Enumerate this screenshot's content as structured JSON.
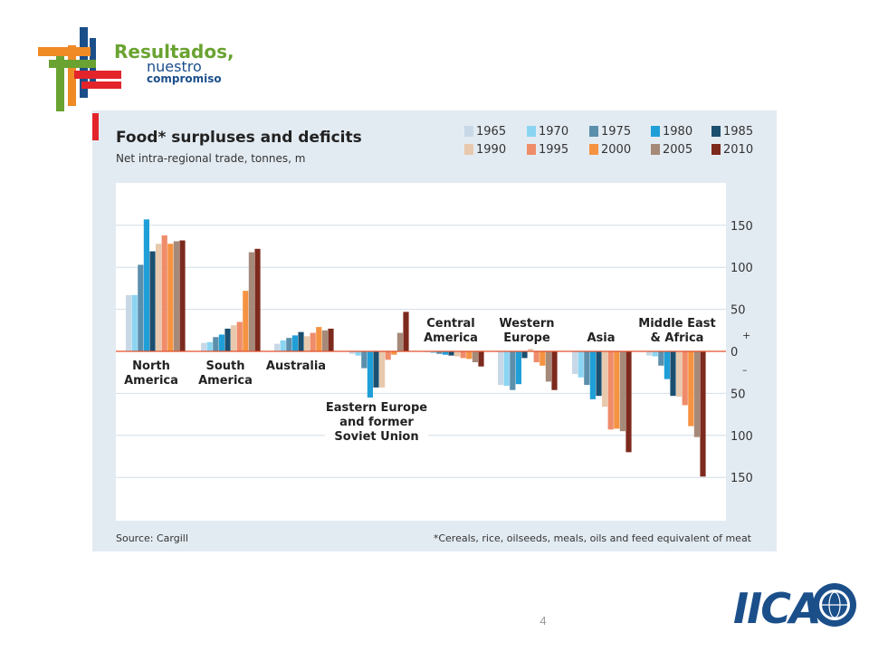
{
  "slide": {
    "page_number": "4",
    "logo_text": {
      "line1": "Resultados,",
      "line2": "nuestro",
      "line3": "compromiso"
    },
    "iica_logo_text": "IICA"
  },
  "colors": {
    "red_accent": "#e3242b",
    "panel": "#e3ebf2",
    "grid": "#ffffff",
    "zero_line": "#e0502c",
    "text": "#333333",
    "series": [
      "#c8d8e6",
      "#8bd4f2",
      "#5b8fab",
      "#1f9fd8",
      "#1b4f70",
      "#e8c9ad",
      "#ef8c6a",
      "#f59342",
      "#a68a79",
      "#7c2a1d"
    ]
  },
  "chart_data": {
    "type": "bar",
    "title": "Food* surpluses and deficits",
    "subtitle": "Net intra-regional trade, tonnes, m",
    "source": "Source: Cargill",
    "footnote": "*Cereals, rice, oilseeds, meals, oils and feed equivalent of meat",
    "y_ticks": [
      {
        "value": 150,
        "label": "150"
      },
      {
        "value": 100,
        "label": "100"
      },
      {
        "value": 50,
        "label": "50"
      },
      {
        "value": 0,
        "label": "0"
      },
      {
        "value": -50,
        "label": "50"
      },
      {
        "value": -100,
        "label": "100"
      },
      {
        "value": -150,
        "label": "150"
      }
    ],
    "sign_labels": {
      "positive": "+",
      "negative": "–"
    },
    "ylim": [
      -165,
      160
    ],
    "grid": true,
    "legend_position": "top-right",
    "categories": [
      "North America",
      "South America",
      "Australia",
      "Eastern Europe and former Soviet Union",
      "Central America",
      "Western Europe",
      "Asia",
      "Middle East & Africa"
    ],
    "category_labels": [
      [
        "North",
        "America"
      ],
      [
        "South",
        "America"
      ],
      [
        "Australia"
      ],
      [
        "Eastern Europe",
        "and former",
        "Soviet Union"
      ],
      [
        "Central",
        "America"
      ],
      [
        "Western",
        "Europe"
      ],
      [
        "Asia"
      ],
      [
        "Middle East",
        "& Africa"
      ]
    ],
    "series": [
      {
        "name": "1965",
        "values": [
          67,
          10,
          9,
          -3,
          -1,
          -40,
          -27,
          -5
        ]
      },
      {
        "name": "1970",
        "values": [
          67,
          11,
          13,
          -5,
          -2,
          -41,
          -31,
          -6
        ]
      },
      {
        "name": "1975",
        "values": [
          103,
          17,
          16,
          -20,
          -3,
          -46,
          -40,
          -17
        ]
      },
      {
        "name": "1980",
        "values": [
          157,
          20,
          19,
          -55,
          -4,
          -39,
          -57,
          -33
        ]
      },
      {
        "name": "1985",
        "values": [
          119,
          27,
          23,
          -43,
          -5,
          -8,
          -53,
          -53
        ]
      },
      {
        "name": "1990",
        "values": [
          128,
          31,
          18,
          -43,
          -6,
          3,
          -66,
          -54
        ]
      },
      {
        "name": "1995",
        "values": [
          138,
          35,
          22,
          -10,
          -8,
          -13,
          -93,
          -64
        ]
      },
      {
        "name": "2000",
        "values": [
          128,
          72,
          29,
          -4,
          -9,
          -17,
          -92,
          -89
        ]
      },
      {
        "name": "2005",
        "values": [
          131,
          118,
          25,
          22,
          -13,
          -36,
          -95,
          -102
        ]
      },
      {
        "name": "2010",
        "values": [
          132,
          122,
          27,
          47,
          -18,
          -46,
          -120,
          -149
        ]
      }
    ]
  }
}
